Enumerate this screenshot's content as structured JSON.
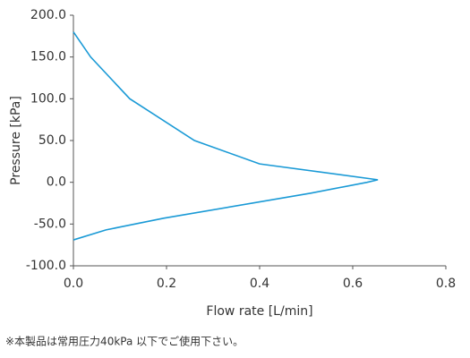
{
  "chart_data": {
    "type": "line",
    "x_label": "Flow rate [L/min]",
    "y_label": "Pressure [kPa]",
    "footnote": "※本製品は常用圧力40kPa 以下でご使用下さい。",
    "series": [
      {
        "color": "#1a9ad6",
        "x": [
          0,
          0.037,
          0.121,
          0.26,
          0.4,
          0.654,
          0.631,
          0.51,
          0.194,
          0.07,
          0
        ],
        "values": [
          180,
          150,
          100,
          50,
          22,
          3,
          0,
          -13,
          -43,
          -57,
          -69
        ]
      }
    ],
    "xlim": [
      0,
      0.8
    ],
    "xticks": [
      {
        "value": 0,
        "label": "0.0"
      },
      0.2,
      0.4,
      0.6,
      0.8
    ],
    "ylim": [
      -100,
      200
    ],
    "yticks": [
      {
        "value": -100,
        "label": "-100.0"
      },
      {
        "value": -50,
        "label": "-50.0"
      },
      {
        "value": 0,
        "label": "0.0"
      },
      {
        "value": 50,
        "label": "50.0"
      },
      {
        "value": 100,
        "label": "100.0"
      },
      {
        "value": 150,
        "label": "150.0"
      },
      {
        "value": 200,
        "label": "200.0"
      }
    ],
    "grid": false
  }
}
